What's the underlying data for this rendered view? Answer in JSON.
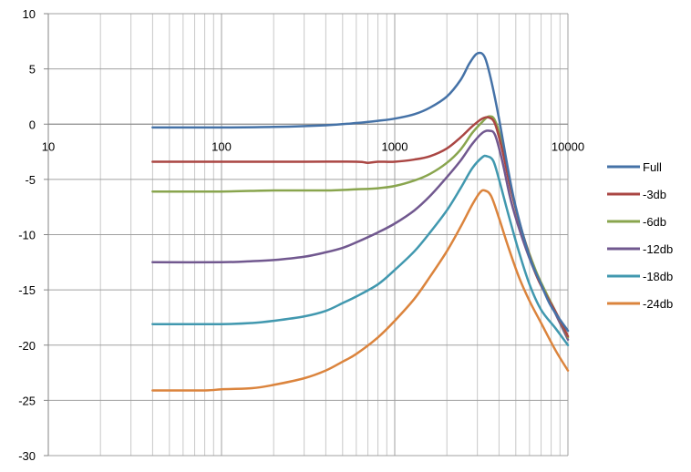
{
  "chart_data": {
    "type": "line",
    "title": "",
    "xlabel": "",
    "ylabel": "",
    "xscale": "log",
    "xlim": [
      10,
      10000
    ],
    "ylim": [
      -30,
      10
    ],
    "grid": true,
    "legend_position": "right",
    "x_ticks": [
      "10",
      "100",
      "1000",
      "10000"
    ],
    "y_ticks": [
      "10",
      "5",
      "0",
      "-5",
      "-10",
      "-15",
      "-20",
      "-25",
      "-30"
    ],
    "x_tick_values": [
      10,
      100,
      1000,
      10000
    ],
    "y_tick_values": [
      10,
      5,
      0,
      -5,
      -10,
      -15,
      -20,
      -25,
      -30
    ],
    "series": [
      {
        "name": "Full",
        "color": "#4572A7",
        "points": [
          [
            40,
            -0.3
          ],
          [
            100,
            -0.3
          ],
          [
            200,
            -0.25
          ],
          [
            400,
            -0.1
          ],
          [
            600,
            0.1
          ],
          [
            800,
            0.3
          ],
          [
            1000,
            0.5
          ],
          [
            1300,
            0.9
          ],
          [
            1600,
            1.5
          ],
          [
            2000,
            2.5
          ],
          [
            2400,
            4.0
          ],
          [
            2700,
            5.5
          ],
          [
            3000,
            6.4
          ],
          [
            3300,
            6.1
          ],
          [
            3600,
            4.0
          ],
          [
            4000,
            0.5
          ],
          [
            4500,
            -4.0
          ],
          [
            5000,
            -7.5
          ],
          [
            6000,
            -12.0
          ],
          [
            7000,
            -14.5
          ],
          [
            8000,
            -16.5
          ],
          [
            10000,
            -18.7
          ]
        ]
      },
      {
        "name": "-3db",
        "color": "#AA4643",
        "points": [
          [
            40,
            -3.4
          ],
          [
            100,
            -3.4
          ],
          [
            300,
            -3.4
          ],
          [
            600,
            -3.4
          ],
          [
            700,
            -3.5
          ],
          [
            800,
            -3.4
          ],
          [
            1000,
            -3.4
          ],
          [
            1300,
            -3.2
          ],
          [
            1600,
            -2.9
          ],
          [
            2000,
            -2.2
          ],
          [
            2400,
            -1.2
          ],
          [
            2800,
            -0.2
          ],
          [
            3200,
            0.5
          ],
          [
            3500,
            0.6
          ],
          [
            3800,
            0.0
          ],
          [
            4200,
            -2.5
          ],
          [
            4700,
            -6.0
          ],
          [
            5500,
            -10.0
          ],
          [
            6500,
            -13.5
          ],
          [
            7500,
            -15.5
          ],
          [
            8500,
            -17.0
          ],
          [
            10000,
            -19.2
          ]
        ]
      },
      {
        "name": "-6db",
        "color": "#89A54E",
        "points": [
          [
            40,
            -6.1
          ],
          [
            100,
            -6.1
          ],
          [
            200,
            -6.0
          ],
          [
            400,
            -6.0
          ],
          [
            600,
            -5.9
          ],
          [
            800,
            -5.8
          ],
          [
            1000,
            -5.6
          ],
          [
            1300,
            -5.1
          ],
          [
            1600,
            -4.5
          ],
          [
            2000,
            -3.5
          ],
          [
            2400,
            -2.3
          ],
          [
            2800,
            -0.8
          ],
          [
            3200,
            0.2
          ],
          [
            3500,
            0.7
          ],
          [
            3800,
            0.3
          ],
          [
            4200,
            -2.0
          ],
          [
            4700,
            -6.0
          ],
          [
            5500,
            -10.0
          ],
          [
            6500,
            -13.2
          ],
          [
            7500,
            -15.3
          ],
          [
            8500,
            -17.0
          ],
          [
            10000,
            -19.3
          ]
        ]
      },
      {
        "name": "-12db",
        "color": "#71588F",
        "points": [
          [
            40,
            -12.5
          ],
          [
            100,
            -12.5
          ],
          [
            150,
            -12.4
          ],
          [
            200,
            -12.3
          ],
          [
            300,
            -12.0
          ],
          [
            400,
            -11.6
          ],
          [
            500,
            -11.2
          ],
          [
            600,
            -10.7
          ],
          [
            800,
            -9.8
          ],
          [
            1000,
            -9.0
          ],
          [
            1300,
            -7.8
          ],
          [
            1600,
            -6.5
          ],
          [
            2000,
            -4.8
          ],
          [
            2400,
            -3.3
          ],
          [
            2800,
            -1.8
          ],
          [
            3200,
            -0.8
          ],
          [
            3500,
            -0.6
          ],
          [
            3800,
            -1.0
          ],
          [
            4200,
            -3.5
          ],
          [
            4700,
            -7.0
          ],
          [
            5500,
            -10.5
          ],
          [
            6500,
            -13.5
          ],
          [
            7500,
            -15.5
          ],
          [
            8500,
            -17.2
          ],
          [
            10000,
            -19.5
          ]
        ]
      },
      {
        "name": "-18db",
        "color": "#4198AF",
        "points": [
          [
            40,
            -18.1
          ],
          [
            100,
            -18.1
          ],
          [
            150,
            -18.0
          ],
          [
            200,
            -17.8
          ],
          [
            300,
            -17.4
          ],
          [
            400,
            -16.9
          ],
          [
            500,
            -16.2
          ],
          [
            600,
            -15.6
          ],
          [
            800,
            -14.5
          ],
          [
            1000,
            -13.2
          ],
          [
            1300,
            -11.5
          ],
          [
            1600,
            -9.8
          ],
          [
            2000,
            -7.8
          ],
          [
            2400,
            -5.8
          ],
          [
            2800,
            -4.0
          ],
          [
            3200,
            -3.0
          ],
          [
            3400,
            -2.9
          ],
          [
            3700,
            -3.3
          ],
          [
            4000,
            -5.0
          ],
          [
            4500,
            -8.0
          ],
          [
            5200,
            -11.5
          ],
          [
            6000,
            -14.5
          ],
          [
            7000,
            -16.8
          ],
          [
            8500,
            -18.5
          ],
          [
            10000,
            -20.0
          ]
        ]
      },
      {
        "name": "-24db",
        "color": "#DB843D",
        "points": [
          [
            40,
            -24.1
          ],
          [
            80,
            -24.1
          ],
          [
            100,
            -24.0
          ],
          [
            150,
            -23.9
          ],
          [
            200,
            -23.6
          ],
          [
            300,
            -23.0
          ],
          [
            400,
            -22.3
          ],
          [
            500,
            -21.5
          ],
          [
            600,
            -20.8
          ],
          [
            800,
            -19.3
          ],
          [
            1000,
            -17.8
          ],
          [
            1300,
            -15.8
          ],
          [
            1600,
            -13.8
          ],
          [
            2000,
            -11.5
          ],
          [
            2400,
            -9.3
          ],
          [
            2800,
            -7.3
          ],
          [
            3100,
            -6.2
          ],
          [
            3300,
            -6.0
          ],
          [
            3600,
            -6.5
          ],
          [
            4000,
            -8.5
          ],
          [
            4500,
            -11.0
          ],
          [
            5200,
            -13.8
          ],
          [
            6000,
            -16.0
          ],
          [
            7000,
            -18.0
          ],
          [
            8500,
            -20.5
          ],
          [
            10000,
            -22.3
          ]
        ]
      }
    ]
  }
}
